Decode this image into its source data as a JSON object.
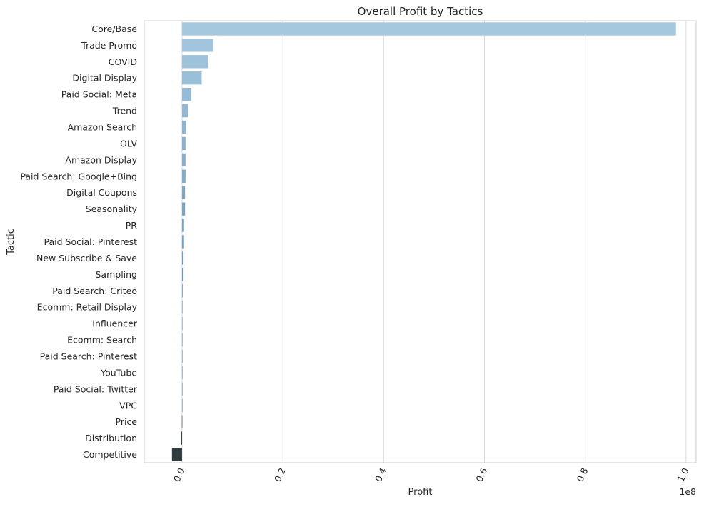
{
  "chart_data": {
    "type": "bar",
    "orientation": "horizontal",
    "title": "Overall Profit by Tactics",
    "xlabel": "Profit",
    "ylabel": "Tactic",
    "x_offset_text": "1e8",
    "xlim": [
      -0.075,
      1.02
    ],
    "x_scale_factor": 100000000,
    "x_ticks": [
      0.0,
      0.2,
      0.4,
      0.6,
      0.8,
      1.0
    ],
    "x_tick_labels": [
      "0.0",
      "0.2",
      "0.4",
      "0.6",
      "0.8",
      "1.0"
    ],
    "x_tick_rotation": "-65deg",
    "grid": "vertical",
    "palette_positive": [
      "#a6c8df",
      "#3e76a2"
    ],
    "color_negative": "#2f3b3d",
    "categories": [
      "Core/Base",
      "Trade Promo",
      "COVID",
      "Digital Display",
      "Paid Social: Meta",
      "Trend",
      "Amazon Search",
      "OLV",
      "Amazon Display",
      "Paid Search: Google+Bing",
      "Digital Coupons",
      "Seasonality",
      "PR",
      "Paid Social: Pinterest",
      "New Subscribe & Save",
      "Sampling",
      "Paid Search: Criteo",
      "Ecomm: Retail Display",
      "Influencer",
      "Ecomm: Search",
      "Paid Search: Pinterest",
      "YouTube",
      "Paid Social: Twitter",
      "VPC",
      "Price",
      "Distribution",
      "Competitive"
    ],
    "values": [
      0.98,
      0.062,
      0.052,
      0.039,
      0.018,
      0.012,
      0.008,
      0.007,
      0.007,
      0.007,
      0.006,
      0.006,
      0.004,
      0.004,
      0.003,
      0.003,
      0.0012,
      0.0009,
      0.0008,
      0.0007,
      0.0006,
      0.0005,
      0.0004,
      0.0003,
      -0.0003,
      -0.002,
      -0.02
    ]
  }
}
